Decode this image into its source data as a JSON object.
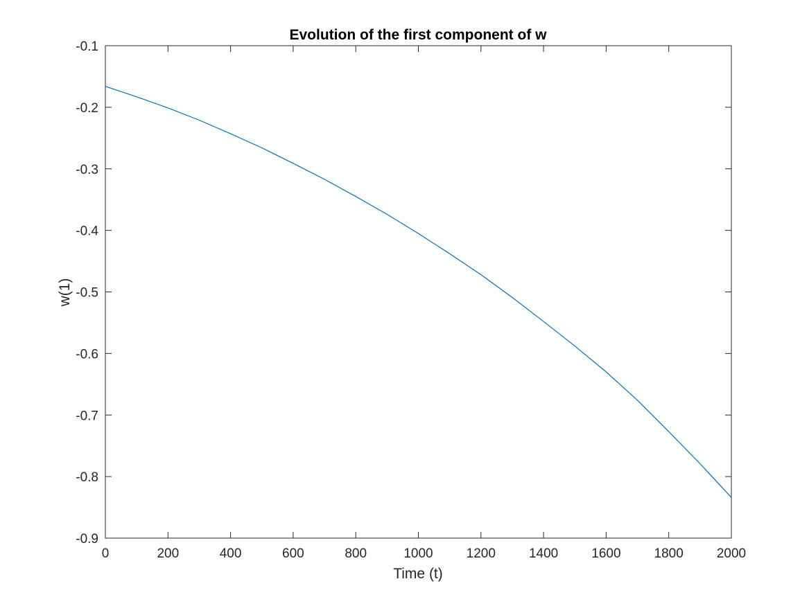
{
  "chart_data": {
    "type": "line",
    "title": "Evolution of the first component of w",
    "xlabel": "Time (t)",
    "ylabel": "w(1)",
    "xlim": [
      0,
      2000
    ],
    "ylim": [
      -0.9,
      -0.1
    ],
    "xticks": [
      0,
      200,
      400,
      600,
      800,
      1000,
      1200,
      1400,
      1600,
      1800,
      2000
    ],
    "yticks": [
      -0.9,
      -0.8,
      -0.7,
      -0.6,
      -0.5,
      -0.4,
      -0.3,
      -0.2,
      -0.1
    ],
    "xtick_labels": [
      "0",
      "200",
      "400",
      "600",
      "800",
      "1000",
      "1200",
      "1400",
      "1600",
      "1800",
      "2000"
    ],
    "ytick_labels": [
      "-0.9",
      "-0.8",
      "-0.7",
      "-0.6",
      "-0.5",
      "-0.4",
      "-0.3",
      "-0.2",
      "-0.1"
    ],
    "grid": false,
    "series": [
      {
        "color": "#0072BD",
        "x": [
          0,
          100,
          200,
          300,
          400,
          500,
          600,
          700,
          800,
          900,
          1000,
          1100,
          1200,
          1300,
          1400,
          1500,
          1600,
          1700,
          1800,
          1900,
          2000
        ],
        "y": [
          -0.166,
          -0.183,
          -0.201,
          -0.221,
          -0.243,
          -0.266,
          -0.291,
          -0.317,
          -0.345,
          -0.374,
          -0.405,
          -0.438,
          -0.472,
          -0.509,
          -0.548,
          -0.588,
          -0.63,
          -0.676,
          -0.727,
          -0.779,
          -0.834
        ]
      }
    ]
  }
}
